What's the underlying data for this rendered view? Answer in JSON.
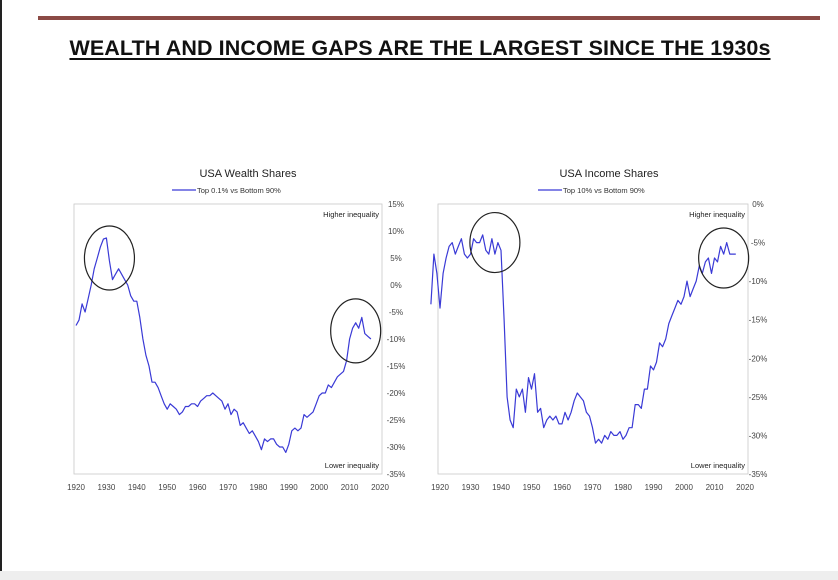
{
  "headline": "WEALTH AND INCOME GAPS ARE THE LARGEST SINCE THE 1930s",
  "colors": {
    "series": "#3a3ad6",
    "rule": "#8b4a45",
    "frame": "#c8c8c8"
  },
  "chart_data": [
    {
      "type": "line",
      "title": "USA Wealth Shares",
      "legend": "Top 0.1% vs Bottom 90%",
      "annotations": {
        "top": "Higher inequality",
        "bottom": "Lower inequality"
      },
      "xlim": [
        1920,
        2020
      ],
      "xticks": [
        "1920",
        "1930",
        "1940",
        "1950",
        "1960",
        "1970",
        "1980",
        "1990",
        "2000",
        "2010",
        "2020"
      ],
      "ylim": [
        -35,
        15
      ],
      "yticks": [
        "15%",
        "10%",
        "5%",
        "0%",
        "-5%",
        "-10%",
        "-15%",
        "-20%",
        "-25%",
        "-30%",
        "-35%"
      ],
      "highlight_circles": [
        {
          "x": 1931,
          "y": 5
        },
        {
          "x": 2012,
          "y": -8.5
        }
      ],
      "series": [
        {
          "x": [
            1920,
            1921,
            1922,
            1923,
            1924,
            1925,
            1926,
            1927,
            1928,
            1929,
            1930,
            1931,
            1932,
            1933,
            1934,
            1935,
            1936,
            1937,
            1938,
            1939,
            1940,
            1941,
            1942,
            1943,
            1944,
            1945,
            1946,
            1947,
            1948,
            1949,
            1950,
            1951,
            1952,
            1953,
            1954,
            1955,
            1956,
            1957,
            1958,
            1959,
            1960,
            1961,
            1962,
            1963,
            1964,
            1965,
            1966,
            1967,
            1968,
            1969,
            1970,
            1971,
            1972,
            1973,
            1974,
            1975,
            1976,
            1977,
            1978,
            1979,
            1980,
            1981,
            1982,
            1983,
            1984,
            1985,
            1986,
            1987,
            1988,
            1989,
            1990,
            1991,
            1992,
            1993,
            1994,
            1995,
            1996,
            1997,
            1998,
            1999,
            2000,
            2001,
            2002,
            2003,
            2004,
            2005,
            2006,
            2007,
            2008,
            2009,
            2010,
            2011,
            2012,
            2013,
            2014,
            2015,
            2016,
            2017
          ],
          "y": [
            -7.5,
            -6.5,
            -3.5,
            -5,
            -2.5,
            0,
            3,
            5,
            7,
            8.5,
            8.7,
            4.5,
            1,
            2,
            3,
            2,
            1,
            0,
            -2,
            -3,
            -3,
            -6,
            -10,
            -13,
            -15,
            -18,
            -18,
            -19,
            -20.5,
            -22,
            -23,
            -22,
            -22.5,
            -23,
            -24,
            -23.5,
            -22.5,
            -22.5,
            -22,
            -22,
            -22.5,
            -21.5,
            -21,
            -20.5,
            -20.5,
            -20,
            -20.5,
            -21,
            -21.5,
            -23,
            -22,
            -24,
            -23,
            -23.5,
            -26,
            -25.5,
            -26.5,
            -27.5,
            -27,
            -28,
            -29,
            -30.5,
            -28.5,
            -29,
            -28.5,
            -28.5,
            -29.5,
            -30,
            -30,
            -31,
            -29.5,
            -27,
            -26.5,
            -27,
            -26.5,
            -24,
            -24.5,
            -24,
            -23.5,
            -22,
            -20.5,
            -20,
            -20,
            -18.5,
            -19,
            -18,
            -17,
            -16.5,
            -16,
            -14,
            -10,
            -8,
            -7,
            -8,
            -6,
            -9,
            -9.5,
            -10
          ]
        }
      ]
    },
    {
      "type": "line",
      "title": "USA Income Shares",
      "legend": "Top 10% vs Bottom 90%",
      "annotations": {
        "top": "Higher inequality",
        "bottom": "Lower inequality"
      },
      "xlim": [
        1920,
        2020
      ],
      "xticks": [
        "1920",
        "1930",
        "1940",
        "1950",
        "1960",
        "1970",
        "1980",
        "1990",
        "2000",
        "2010",
        "2020"
      ],
      "ylim": [
        -35,
        0
      ],
      "yticks": [
        "0%",
        "-5%",
        "-10%",
        "-15%",
        "-20%",
        "-25%",
        "-30%",
        "-35%"
      ],
      "highlight_circles": [
        {
          "x": 1938,
          "y": -5
        },
        {
          "x": 2013,
          "y": -7
        }
      ],
      "series": [
        {
          "x": [
            1917,
            1918,
            1919,
            1920,
            1921,
            1922,
            1923,
            1924,
            1925,
            1926,
            1927,
            1928,
            1929,
            1930,
            1931,
            1932,
            1933,
            1934,
            1935,
            1936,
            1937,
            1938,
            1939,
            1940,
            1941,
            1942,
            1943,
            1944,
            1945,
            1946,
            1947,
            1948,
            1949,
            1950,
            1951,
            1952,
            1953,
            1954,
            1955,
            1956,
            1957,
            1958,
            1959,
            1960,
            1961,
            1962,
            1963,
            1964,
            1965,
            1966,
            1967,
            1968,
            1969,
            1970,
            1971,
            1972,
            1973,
            1974,
            1975,
            1976,
            1977,
            1978,
            1979,
            1980,
            1981,
            1982,
            1983,
            1984,
            1985,
            1986,
            1987,
            1988,
            1989,
            1990,
            1991,
            1992,
            1993,
            1994,
            1995,
            1996,
            1997,
            1998,
            1999,
            2000,
            2001,
            2002,
            2003,
            2004,
            2005,
            2006,
            2007,
            2008,
            2009,
            2010,
            2011,
            2012,
            2013,
            2014,
            2015,
            2016,
            2017
          ],
          "y": [
            -13,
            -6.5,
            -9,
            -13.5,
            -9,
            -7,
            -5.5,
            -5,
            -6.5,
            -5.5,
            -4.5,
            -6.5,
            -7,
            -6.5,
            -4.5,
            -5,
            -5,
            -4,
            -6,
            -6.5,
            -4.5,
            -6.5,
            -5,
            -6,
            -15,
            -25,
            -28,
            -29,
            -24,
            -25,
            -24,
            -27,
            -22.5,
            -24,
            -22,
            -27,
            -26.5,
            -29,
            -28,
            -27.5,
            -28,
            -27.5,
            -28.5,
            -28.5,
            -27,
            -28,
            -27,
            -25.5,
            -24.5,
            -25,
            -25.5,
            -27,
            -27.5,
            -29,
            -31,
            -30.5,
            -31,
            -30,
            -30.5,
            -29.5,
            -30,
            -30,
            -29.5,
            -30.5,
            -30,
            -29,
            -29,
            -26,
            -26,
            -26.5,
            -24,
            -24,
            -21,
            -21.5,
            -20.5,
            -18,
            -18.5,
            -17.5,
            -15.5,
            -14.5,
            -13.5,
            -12.5,
            -13,
            -12,
            -10,
            -12,
            -11,
            -10,
            -8,
            -9,
            -7.5,
            -7,
            -9,
            -7,
            -7.5,
            -5.5,
            -6.5,
            -5,
            -6.5,
            -6.5,
            -6.5
          ]
        }
      ]
    }
  ]
}
